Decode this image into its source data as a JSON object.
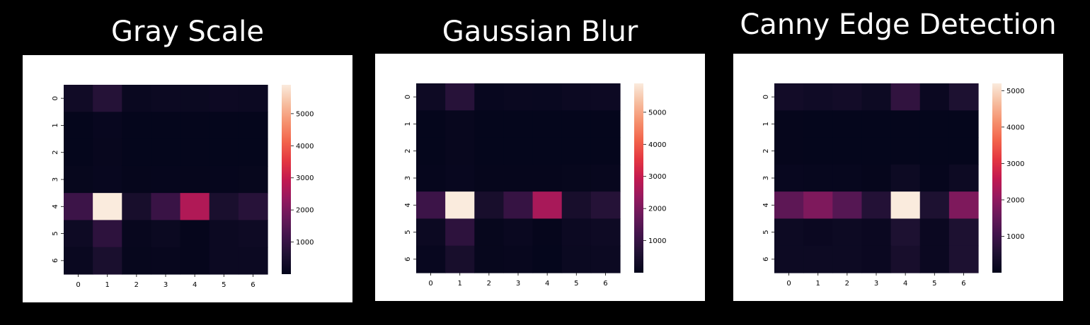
{
  "colors": {
    "background": "#000000",
    "panel": "#ffffff",
    "colormap": "rocket"
  },
  "chart_data": [
    {
      "type": "heatmap",
      "title": "Gray Scale",
      "xticks": [
        "0",
        "1",
        "2",
        "3",
        "4",
        "5",
        "6"
      ],
      "yticks": [
        "0",
        "1",
        "2",
        "3",
        "4",
        "5",
        "6"
      ],
      "colorbar_ticks": [
        "1000",
        "2000",
        "3000",
        "4000",
        "5000"
      ],
      "vmin": 0,
      "vmax": 5900,
      "values": [
        [
          300,
          700,
          150,
          200,
          180,
          220,
          200
        ],
        [
          50,
          120,
          40,
          40,
          40,
          40,
          40
        ],
        [
          50,
          100,
          40,
          40,
          40,
          40,
          40
        ],
        [
          80,
          120,
          60,
          70,
          60,
          70,
          80
        ],
        [
          1100,
          5900,
          450,
          1050,
          2700,
          500,
          750
        ],
        [
          250,
          850,
          100,
          180,
          60,
          200,
          250
        ],
        [
          150,
          500,
          80,
          100,
          60,
          200,
          200
        ]
      ]
    },
    {
      "type": "heatmap",
      "title": "Gaussian Blur",
      "xticks": [
        "0",
        "1",
        "2",
        "3",
        "4",
        "5",
        "6"
      ],
      "yticks": [
        "0",
        "1",
        "2",
        "3",
        "4",
        "5",
        "6"
      ],
      "colorbar_ticks": [
        "1000",
        "2000",
        "3000",
        "4000",
        "5000"
      ],
      "vmin": 0,
      "vmax": 5900,
      "values": [
        [
          250,
          750,
          120,
          150,
          140,
          200,
          220
        ],
        [
          40,
          100,
          40,
          40,
          40,
          40,
          40
        ],
        [
          50,
          100,
          40,
          40,
          40,
          40,
          40
        ],
        [
          70,
          120,
          60,
          60,
          60,
          80,
          100
        ],
        [
          1100,
          5900,
          450,
          1000,
          2600,
          450,
          700
        ],
        [
          200,
          850,
          80,
          150,
          60,
          200,
          250
        ],
        [
          120,
          450,
          80,
          100,
          50,
          180,
          200
        ]
      ]
    },
    {
      "type": "heatmap",
      "title": "Canny Edge Detection",
      "xticks": [
        "0",
        "1",
        "2",
        "3",
        "4",
        "5",
        "6"
      ],
      "yticks": [
        "0",
        "1",
        "2",
        "3",
        "4",
        "5",
        "6"
      ],
      "colorbar_ticks": [
        "1000",
        "2000",
        "3000",
        "4000",
        "5000"
      ],
      "vmin": 0,
      "vmax": 5200,
      "values": [
        [
          300,
          250,
          300,
          200,
          800,
          150,
          500
        ],
        [
          50,
          40,
          40,
          40,
          40,
          40,
          40
        ],
        [
          50,
          40,
          40,
          40,
          40,
          40,
          40
        ],
        [
          100,
          80,
          80,
          50,
          200,
          60,
          200
        ],
        [
          1400,
          1800,
          1300,
          600,
          5200,
          500,
          1800
        ],
        [
          200,
          150,
          200,
          150,
          500,
          150,
          500
        ],
        [
          200,
          200,
          200,
          150,
          400,
          150,
          500
        ]
      ]
    }
  ]
}
